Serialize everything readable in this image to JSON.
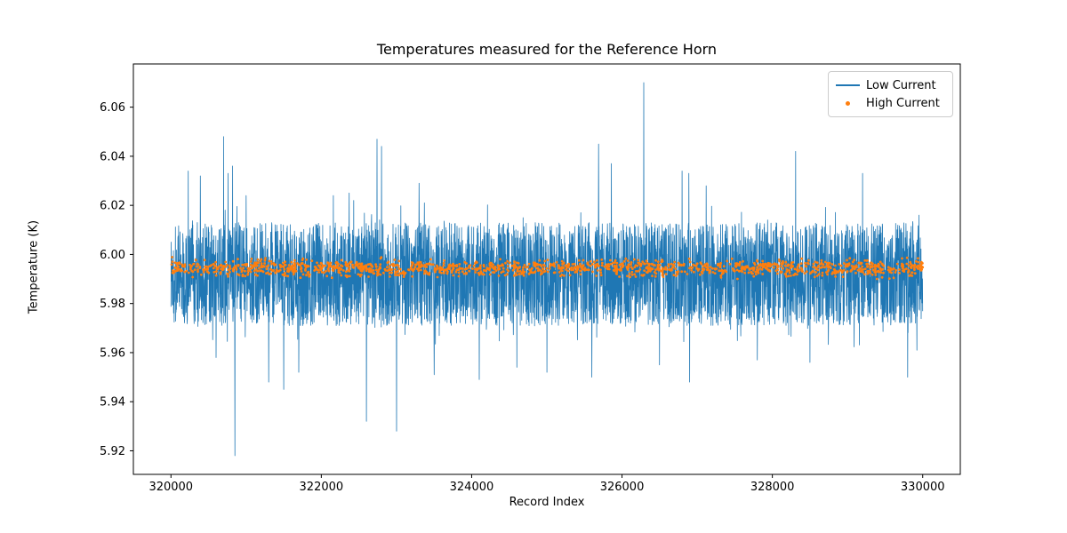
{
  "chart_data": {
    "type": "line",
    "title": "Temperatures measured for the Reference Horn",
    "xlabel": "Record Index",
    "ylabel": "Temperature (K)",
    "xlim": [
      319500,
      330500
    ],
    "ylim": [
      5.9104,
      6.0776
    ],
    "x_ticks": [
      320000,
      322000,
      324000,
      326000,
      328000,
      330000
    ],
    "y_ticks": [
      5.92,
      5.94,
      5.96,
      5.98,
      6.0,
      6.02,
      6.04,
      6.06
    ],
    "grid": false,
    "legend_position": "upper right",
    "series": [
      {
        "name": "Low Current",
        "type": "line",
        "color": "#1f77b4",
        "x_start": 320000,
        "x_end": 330000,
        "n_points": 4000,
        "band_center": 5.992,
        "band_halfwidth": 0.021,
        "dip_prob": 0.06,
        "dip_max": 0.013,
        "bump_prob": 0.06,
        "bump_max": 0.009,
        "spikes_up": [
          [
            320230,
            6.034
          ],
          [
            320390,
            6.032
          ],
          [
            320700,
            6.048
          ],
          [
            320760,
            6.033
          ],
          [
            320820,
            6.036
          ],
          [
            321000,
            6.024
          ],
          [
            322160,
            6.024
          ],
          [
            322370,
            6.025
          ],
          [
            322430,
            6.022
          ],
          [
            322740,
            6.047
          ],
          [
            322800,
            6.044
          ],
          [
            323300,
            6.029
          ],
          [
            323370,
            6.021
          ],
          [
            325690,
            6.045
          ],
          [
            325860,
            6.037
          ],
          [
            326290,
            6.07
          ],
          [
            326800,
            6.034
          ],
          [
            326890,
            6.033
          ],
          [
            327120,
            6.028
          ],
          [
            328310,
            6.042
          ],
          [
            329200,
            6.033
          ],
          [
            329950,
            6.016
          ]
        ],
        "spikes_down": [
          [
            320600,
            5.958
          ],
          [
            320850,
            5.918
          ],
          [
            321300,
            5.948
          ],
          [
            321500,
            5.945
          ],
          [
            321700,
            5.952
          ],
          [
            322600,
            5.932
          ],
          [
            323000,
            5.928
          ],
          [
            323500,
            5.951
          ],
          [
            324100,
            5.949
          ],
          [
            324600,
            5.954
          ],
          [
            325000,
            5.952
          ],
          [
            325600,
            5.95
          ],
          [
            326500,
            5.955
          ],
          [
            326900,
            5.948
          ],
          [
            327800,
            5.957
          ],
          [
            328500,
            5.956
          ],
          [
            329800,
            5.95
          ]
        ]
      },
      {
        "name": "High Current",
        "type": "scatter",
        "color": "#ff7f0e",
        "x_start": 320000,
        "x_end": 330000,
        "n_points": 1500,
        "mean": 5.9945,
        "sd": 0.0016,
        "clamp": [
          5.9885,
          6.0005
        ]
      }
    ]
  }
}
